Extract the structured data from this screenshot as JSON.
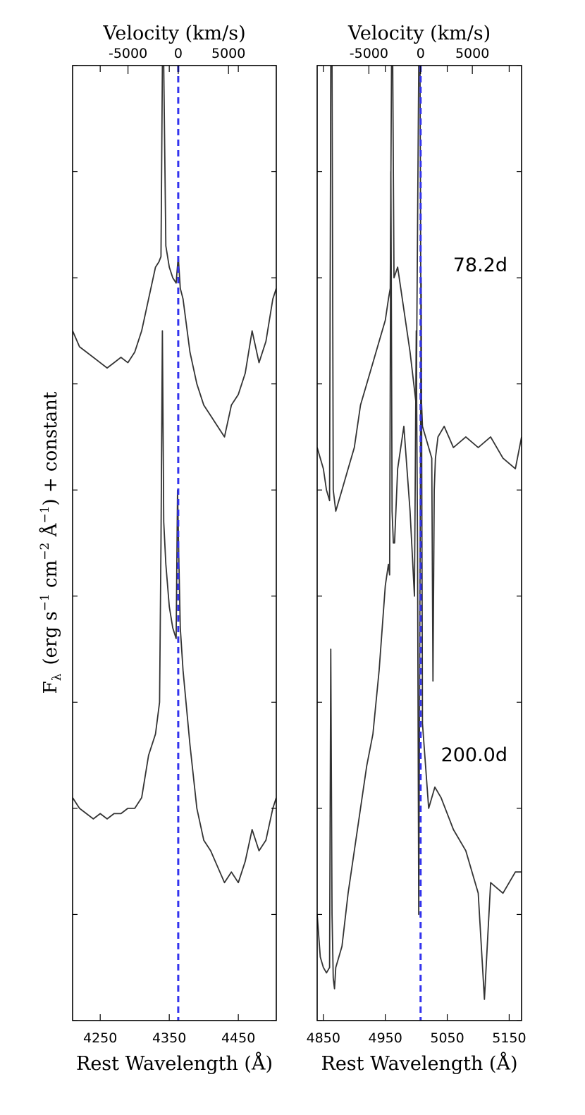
{
  "figure": {
    "ylabel_main": "F",
    "ylabel_sub": "λ",
    "ylabel_unit_open": "(erg s",
    "ylabel_unit_exp1": "−1",
    "ylabel_unit_cm": " cm",
    "ylabel_unit_exp2": "−2",
    "ylabel_unit_ang": " Å",
    "ylabel_unit_exp3": "−1",
    "ylabel_tail": ") + constant"
  },
  "colors": {
    "spectrum": "#333333",
    "marker": "#3333ee",
    "frame": "#000000"
  },
  "chart_data": [
    {
      "type": "line",
      "panel": "left",
      "xlabel": "Rest Wavelength (Å)",
      "top_xlabel": "Velocity (km/s)",
      "xlim": [
        4210,
        4505
      ],
      "xticks": [
        4250,
        4350,
        4450
      ],
      "xtick_labels": [
        "4250",
        "4350",
        "4450"
      ],
      "top_ticks": [
        -5000,
        0,
        5000
      ],
      "top_tick_labels": [
        "-5000",
        "0",
        "5000"
      ],
      "rest_line": 4363,
      "yticks_count": 9,
      "ylim": [
        0,
        9
      ],
      "epoch_labels": [],
      "series": [
        {
          "x": [
            4210,
            4220,
            4230,
            4240,
            4250,
            4260,
            4270,
            4280,
            4290,
            4300,
            4310,
            4320,
            4330,
            4335,
            4338,
            4340,
            4342,
            4345,
            4350,
            4355,
            4360,
            4363,
            4366,
            4370,
            4380,
            4390,
            4400,
            4410,
            4420,
            4430,
            4440,
            4450,
            4460,
            4470,
            4480,
            4490,
            4500,
            4505
          ],
          "y": [
            6.5,
            6.35,
            6.3,
            6.25,
            6.2,
            6.15,
            6.2,
            6.25,
            6.2,
            6.3,
            6.5,
            6.8,
            7.1,
            7.15,
            7.2,
            9,
            9,
            7.3,
            7.1,
            7.0,
            6.95,
            7.2,
            6.9,
            6.8,
            6.3,
            6.0,
            5.8,
            5.7,
            5.6,
            5.5,
            5.8,
            5.9,
            6.1,
            6.5,
            6.2,
            6.4,
            6.8,
            6.9
          ]
        },
        {
          "x": [
            4210,
            4220,
            4230,
            4240,
            4250,
            4260,
            4270,
            4280,
            4290,
            4300,
            4310,
            4320,
            4330,
            4336,
            4338,
            4340,
            4342,
            4345,
            4350,
            4355,
            4360,
            4362,
            4364,
            4366,
            4370,
            4380,
            4390,
            4400,
            4410,
            4420,
            4430,
            4440,
            4450,
            4460,
            4470,
            4480,
            4490,
            4500,
            4505
          ],
          "y": [
            2.1,
            2.0,
            1.95,
            1.9,
            1.95,
            1.9,
            1.95,
            1.95,
            2.0,
            2.0,
            2.1,
            2.5,
            2.7,
            3.0,
            4.5,
            6.5,
            4.7,
            4.3,
            3.9,
            3.7,
            3.6,
            5.0,
            4.3,
            3.7,
            3.3,
            2.6,
            2.0,
            1.7,
            1.6,
            1.45,
            1.3,
            1.4,
            1.3,
            1.5,
            1.8,
            1.6,
            1.7,
            2.0,
            2.1
          ]
        }
      ]
    },
    {
      "type": "line",
      "panel": "right",
      "xlabel": "Rest Wavelength (Å)",
      "top_xlabel": "Velocity (km/s)",
      "xlim": [
        4840,
        5170
      ],
      "xticks": [
        4850,
        4950,
        5050,
        5150
      ],
      "xtick_labels": [
        "4850",
        "4950",
        "5050",
        "5150"
      ],
      "top_ticks": [
        -5000,
        0,
        5000
      ],
      "top_tick_labels": [
        "-5000",
        "0",
        "5000"
      ],
      "rest_line": 5007,
      "yticks_count": 9,
      "ylim": [
        0,
        9
      ],
      "epoch_labels": [
        "78.2d",
        "200.0d"
      ],
      "series": [
        {
          "x": [
            4840,
            4850,
            4855,
            4860,
            4862,
            4864,
            4866,
            4870,
            4880,
            4890,
            4900,
            4910,
            4920,
            4930,
            4940,
            4950,
            4955,
            4958,
            4960,
            4962,
            4964,
            4970,
            4980,
            4990,
            5000,
            5004,
            5006,
            5008,
            5010,
            5015,
            5020,
            5025,
            5027,
            5029,
            5031,
            5035,
            5045,
            5060,
            5080,
            5100,
            5120,
            5140,
            5160,
            5170
          ],
          "y": [
            5.4,
            5.2,
            5.0,
            4.9,
            9,
            9,
            5.0,
            4.8,
            5.0,
            5.2,
            5.4,
            5.8,
            6.0,
            6.2,
            6.4,
            6.6,
            6.8,
            6.9,
            9,
            9,
            7.0,
            7.1,
            6.7,
            6.3,
            5.8,
            9,
            9,
            5.9,
            5.6,
            5.5,
            5.4,
            5.3,
            3.2,
            5.0,
            5.3,
            5.5,
            5.6,
            5.4,
            5.5,
            5.4,
            5.5,
            5.3,
            5.2,
            5.5
          ]
        },
        {
          "x": [
            4840,
            4845,
            4850,
            4855,
            4860,
            4862,
            4864,
            4866,
            4868,
            4870,
            4880,
            4890,
            4900,
            4910,
            4920,
            4930,
            4940,
            4950,
            4955,
            4957,
            4959,
            4961,
            4963,
            4965,
            4970,
            4980,
            4990,
            4997,
            5000,
            5002,
            5004,
            5006,
            5008,
            5010,
            5015,
            5020,
            5030,
            5040,
            5060,
            5080,
            5100,
            5110,
            5120,
            5140,
            5160,
            5170
          ],
          "y": [
            1.0,
            0.6,
            0.5,
            0.45,
            0.5,
            3.5,
            1.0,
            0.4,
            0.3,
            0.5,
            0.7,
            1.2,
            1.6,
            2.0,
            2.4,
            2.7,
            3.3,
            4.1,
            4.3,
            4.2,
            8.0,
            4.8,
            4.5,
            4.5,
            5.2,
            5.6,
            4.8,
            4.0,
            6.5,
            4.5,
            1.0,
            4.1,
            7.0,
            2.8,
            2.4,
            2.0,
            2.2,
            2.1,
            1.8,
            1.6,
            1.2,
            0.2,
            1.3,
            1.2,
            1.4,
            1.4
          ]
        }
      ]
    }
  ]
}
